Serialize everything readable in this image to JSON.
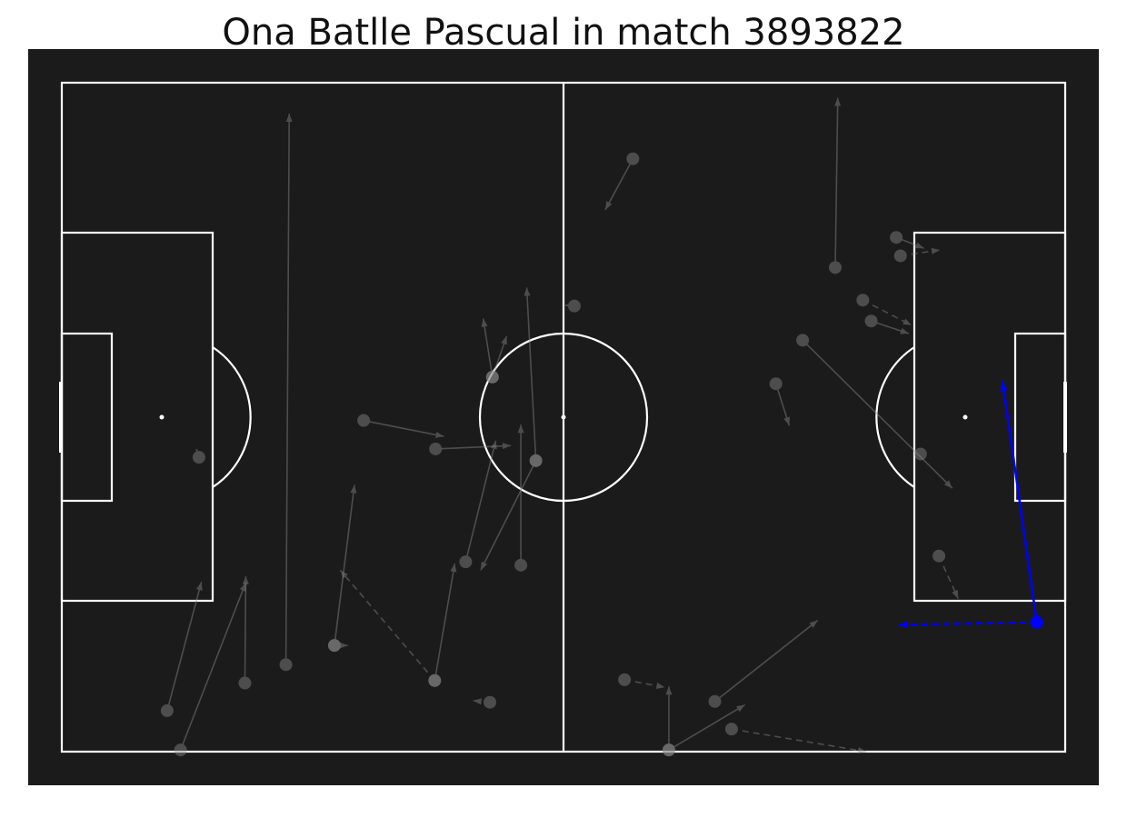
{
  "chart_data": {
    "type": "scatter",
    "title": "Ona Batlle Pascual in match 3893822",
    "xlim": [
      0,
      120
    ],
    "ylim": [
      0,
      80
    ],
    "colors": {
      "background": "#1b1b1b",
      "pitch_lines": "#ffffff",
      "other_actions": "#8a8a8a",
      "highlight": "#0000ff"
    },
    "actions": [
      {
        "x": 26.8,
        "y": 69.6,
        "x2": 27.2,
        "y2": 3.7,
        "style": "solid",
        "highlight": false
      },
      {
        "x": 32.6,
        "y": 67.3,
        "x2": 35.0,
        "y2": 48.1,
        "style": "solid",
        "highlight": false
      },
      {
        "x": 32.6,
        "y": 67.3,
        "x2": 34.2,
        "y2": 67.3,
        "style": "solid",
        "highlight": false
      },
      {
        "x": 44.6,
        "y": 71.5,
        "x2": 47.0,
        "y2": 57.5,
        "style": "solid",
        "highlight": false
      },
      {
        "x": 44.6,
        "y": 71.5,
        "x2": 33.3,
        "y2": 58.3,
        "style": "dashed",
        "highlight": false
      },
      {
        "x": 51.2,
        "y": 74.1,
        "x2": 49.2,
        "y2": 73.9,
        "style": "dashed",
        "highlight": false
      },
      {
        "x": 48.3,
        "y": 57.3,
        "x2": 51.9,
        "y2": 42.8,
        "style": "solid",
        "highlight": false
      },
      {
        "x": 44.7,
        "y": 43.8,
        "x2": 53.7,
        "y2": 43.4,
        "style": "solid",
        "highlight": false
      },
      {
        "x": 36.1,
        "y": 40.4,
        "x2": 45.7,
        "y2": 42.3,
        "style": "solid",
        "highlight": false
      },
      {
        "x": 16.4,
        "y": 44.8,
        "x2": 16.1,
        "y2": 43.8,
        "style": "solid",
        "highlight": false
      },
      {
        "x": 14.2,
        "y": 79.8,
        "x2": 22.0,
        "y2": 59.8,
        "style": "solid",
        "highlight": false
      },
      {
        "x": 12.6,
        "y": 75.1,
        "x2": 16.7,
        "y2": 59.7,
        "style": "solid",
        "highlight": false
      },
      {
        "x": 21.9,
        "y": 71.8,
        "x2": 22.0,
        "y2": 59.0,
        "style": "solid",
        "highlight": false
      },
      {
        "x": 54.9,
        "y": 57.7,
        "y2": 40.9,
        "style": "solid",
        "highlight": false
      },
      {
        "x": 51.5,
        "y": 35.2,
        "x2": 53.2,
        "y2": 30.3,
        "style": "solid",
        "highlight": false
      },
      {
        "x": 51.5,
        "y": 35.2,
        "x2": 50.4,
        "y2": 28.2,
        "style": "solid",
        "highlight": false
      },
      {
        "x": 56.7,
        "y": 45.2,
        "x2": 55.6,
        "y2": 24.5,
        "style": "solid",
        "highlight": false
      },
      {
        "x": 56.7,
        "y": 45.2,
        "x2": 50.1,
        "y2": 58.3,
        "style": "solid",
        "highlight": false
      },
      {
        "x": 61.3,
        "y": 26.7,
        "x2": 60.2,
        "y2": 26.6,
        "style": "solid",
        "highlight": false
      },
      {
        "x": 68.3,
        "y": 9.1,
        "x2": 65.0,
        "y2": 15.2,
        "style": "solid",
        "highlight": false
      },
      {
        "x": 72.6,
        "y": 79.8,
        "x2": 72.6,
        "y2": 72.2,
        "style": "solid",
        "highlight": false
      },
      {
        "x": 72.6,
        "y": 79.8,
        "x2": 81.7,
        "y2": 74.4,
        "style": "solid",
        "highlight": false
      },
      {
        "x": 80.1,
        "y": 77.3,
        "x2": 96.2,
        "y2": 80.0,
        "style": "dashed",
        "highlight": false
      },
      {
        "x": 78.1,
        "y": 74.0,
        "x2": 90.4,
        "y2": 64.3,
        "style": "solid",
        "highlight": false
      },
      {
        "x": 67.3,
        "y": 71.4,
        "x2": 72.1,
        "y2": 72.3,
        "style": "dashed",
        "highlight": false
      },
      {
        "x": 88.6,
        "y": 30.8,
        "x2": 106.5,
        "y2": 48.5,
        "style": "solid",
        "highlight": false
      },
      {
        "x": 85.4,
        "y": 36.0,
        "x2": 87.0,
        "y2": 41.0,
        "style": "solid",
        "highlight": false
      },
      {
        "x": 92.5,
        "y": 22.1,
        "x2": 92.8,
        "y2": 1.8,
        "style": "solid",
        "highlight": false
      },
      {
        "x": 99.8,
        "y": 18.5,
        "x2": 103.1,
        "y2": 19.8,
        "style": "solid",
        "highlight": false
      },
      {
        "x": 102.7,
        "y": 44.4,
        "y2": 44.4,
        "style": "solid",
        "highlight": false
      },
      {
        "x": 104.9,
        "y": 56.6,
        "x2": 107.2,
        "y2": 61.7,
        "style": "dashed",
        "highlight": false
      },
      {
        "x": 95.8,
        "y": 26.0,
        "x2": 101.6,
        "y2": 29.0,
        "style": "dashed",
        "highlight": false
      },
      {
        "x": 96.8,
        "y": 28.5,
        "x2": 101.3,
        "y2": 30.0,
        "style": "solid",
        "highlight": false
      },
      {
        "x": 100.3,
        "y": 20.7,
        "x2": 105.0,
        "y2": 20.0,
        "style": "dashed",
        "highlight": false
      }
    ]
  }
}
